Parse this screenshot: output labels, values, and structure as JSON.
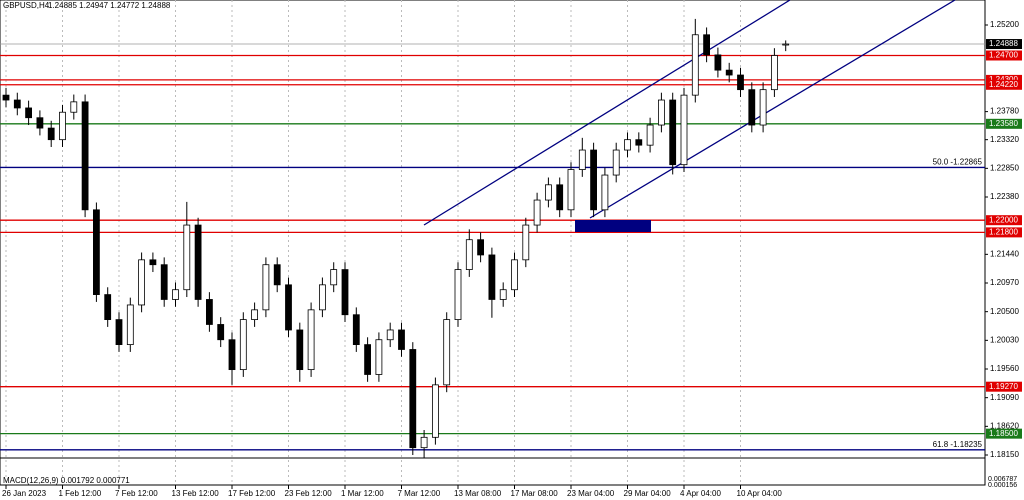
{
  "chart_data": {
    "type": "candlestick",
    "title": "GBPUSD,H4",
    "subtitle": "1.24885 1.24947 1.24772 1.24888",
    "categories": [
      "26 Jan 2023",
      null,
      null,
      null,
      null,
      "1 Feb 12:00",
      null,
      null,
      null,
      null,
      "7 Feb 12:00",
      null,
      null,
      null,
      null,
      "13 Feb 12:00",
      null,
      null,
      null,
      null,
      "17 Feb 12:00",
      null,
      null,
      null,
      null,
      "23 Feb 12:00",
      null,
      null,
      null,
      null,
      "1 Mar 12:00",
      null,
      null,
      null,
      null,
      "7 Mar 12:00",
      null,
      null,
      null,
      null,
      "13 Mar 08:00",
      null,
      null,
      null,
      null,
      "17 Mar 08:00",
      null,
      null,
      null,
      null,
      "23 Mar 04:00",
      null,
      null,
      null,
      null,
      "29 Mar 04:00",
      null,
      null,
      null,
      null,
      "4 Apr 04:00",
      null,
      null,
      null,
      null,
      "10 Apr 04:00",
      null,
      null,
      null,
      null
    ],
    "open": [
      1.2405,
      1.2397,
      1.2384,
      1.2368,
      1.2351,
      1.2332,
      1.2377,
      1.2394,
      1.2217,
      1.2078,
      1.2037,
      1.1996,
      1.2061,
      1.2135,
      1.2127,
      1.207,
      1.2086,
      1.2192,
      1.207,
      1.2029,
      1.2004,
      1.1955,
      1.2037,
      1.2053,
      1.2127,
      1.2094,
      1.202,
      1.1955,
      1.2053,
      1.2094,
      1.2119,
      1.2045,
      1.1996,
      1.1947,
      1.2004,
      1.202,
      1.1988,
      1.1827,
      1.1844,
      1.193,
      1.2037,
      1.2119,
      1.2168,
      1.2143,
      1.207,
      1.2086,
      1.2135,
      1.2192,
      1.2233,
      1.2258,
      1.2217,
      1.2283,
      1.2315,
      1.2217,
      1.2274,
      1.2315,
      1.2332,
      1.2323,
      1.2356,
      1.2397,
      1.2291,
      1.2405,
      1.2504,
      1.2471,
      1.2446,
      1.2438,
      1.2414,
      1.2356,
      1.2414,
      1.24885
    ],
    "high": [
      1.2417,
      1.2409,
      1.2396,
      1.238,
      1.2363,
      1.2389,
      1.2406,
      1.2406,
      1.2229,
      1.209,
      1.2049,
      1.2073,
      1.2147,
      1.2147,
      1.2139,
      1.2098,
      1.223,
      1.2204,
      1.2082,
      1.2041,
      1.2016,
      1.2049,
      1.2065,
      1.2139,
      1.2139,
      1.2106,
      1.2032,
      1.2065,
      1.2106,
      1.2131,
      1.2131,
      1.2057,
      1.2008,
      1.2016,
      1.2032,
      1.2032,
      1.2,
      1.1856,
      1.1942,
      1.2049,
      1.2131,
      1.2185,
      1.218,
      1.2155,
      1.2098,
      1.2147,
      1.2204,
      1.2245,
      1.227,
      1.227,
      1.2295,
      1.2335,
      1.2327,
      1.2286,
      1.2327,
      1.2344,
      1.2344,
      1.2368,
      1.2409,
      1.2409,
      1.2417,
      1.253,
      1.2516,
      1.2483,
      1.2458,
      1.245,
      1.2426,
      1.2426,
      1.2482,
      1.24947
    ],
    "low": [
      1.2385,
      1.2372,
      1.2356,
      1.2339,
      1.232,
      1.232,
      1.2365,
      1.2205,
      1.2066,
      1.2025,
      1.1984,
      1.1984,
      1.2049,
      1.2115,
      1.2058,
      1.2058,
      1.2074,
      1.2058,
      1.2017,
      1.1992,
      1.193,
      1.1943,
      1.2025,
      1.2041,
      1.2082,
      1.2008,
      1.1935,
      1.1943,
      1.2041,
      1.2082,
      1.2033,
      1.1984,
      1.1935,
      1.1935,
      1.1992,
      1.1976,
      1.1815,
      1.181,
      1.1832,
      1.1918,
      1.2025,
      1.2107,
      1.2131,
      1.204,
      1.2058,
      1.2074,
      1.2123,
      1.218,
      1.2221,
      1.2205,
      1.2205,
      1.2271,
      1.2205,
      1.2205,
      1.2262,
      1.2303,
      1.2311,
      1.2311,
      1.2344,
      1.2275,
      1.2279,
      1.2393,
      1.2459,
      1.2434,
      1.2426,
      1.2402,
      1.2344,
      1.2344,
      1.2402,
      1.24772
    ],
    "close": [
      1.2397,
      1.2384,
      1.2368,
      1.2351,
      1.2332,
      1.2377,
      1.2394,
      1.2217,
      1.2078,
      1.2037,
      1.1996,
      1.2061,
      1.2135,
      1.2127,
      1.207,
      1.2086,
      1.2192,
      1.207,
      1.2029,
      1.2004,
      1.1955,
      1.2037,
      1.2053,
      1.2127,
      1.2094,
      1.202,
      1.1955,
      1.2053,
      1.2094,
      1.2119,
      1.2045,
      1.1996,
      1.1947,
      1.2004,
      1.202,
      1.1988,
      1.1827,
      1.1844,
      1.193,
      1.2037,
      1.2119,
      1.2168,
      1.2143,
      1.207,
      1.2086,
      1.2135,
      1.2192,
      1.2233,
      1.2258,
      1.2217,
      1.2283,
      1.2315,
      1.2217,
      1.2274,
      1.2315,
      1.2332,
      1.2323,
      1.2356,
      1.2397,
      1.2291,
      1.2405,
      1.2504,
      1.2471,
      1.2446,
      1.2438,
      1.2414,
      1.2356,
      1.2414,
      1.247,
      1.24888
    ],
    "ylim": [
      1.1815,
      1.2561
    ],
    "yticks": [
      {
        "value": 1.252,
        "label": "1.25200"
      },
      {
        "value": 1.2378,
        "label": "1.23780"
      },
      {
        "value": 1.2332,
        "label": "1.23320"
      },
      {
        "value": 1.2285,
        "label": "1.22850"
      },
      {
        "value": 1.2238,
        "label": "1.22380"
      },
      {
        "value": 1.2144,
        "label": "1.21440"
      },
      {
        "value": 1.2097,
        "label": "1.20970"
      },
      {
        "value": 1.205,
        "label": "1.20500"
      },
      {
        "value": 1.2003,
        "label": "1.20030"
      },
      {
        "value": 1.1956,
        "label": "1.19560"
      },
      {
        "value": 1.1909,
        "label": "1.19090"
      },
      {
        "value": 1.1862,
        "label": "1.18620"
      },
      {
        "value": 1.1815,
        "label": "1.18150"
      }
    ],
    "levels": [
      {
        "value": 1.24888,
        "label": "1.24888",
        "color": "#000000"
      },
      {
        "value": 1.247,
        "label": "1.24700",
        "color": "#e00000"
      },
      {
        "value": 1.243,
        "label": "1.24300",
        "color": "#e00000"
      },
      {
        "value": 1.2422,
        "label": "1.24220",
        "color": "#e00000"
      },
      {
        "value": 1.2358,
        "label": "1.23580",
        "color": "#1a7a1a"
      },
      {
        "value": 1.22865,
        "text": "50.0 -1.22865",
        "color": "#000080"
      },
      {
        "value": 1.22,
        "label": "1.22000",
        "color": "#e00000"
      },
      {
        "value": 1.218,
        "label": "1.21800",
        "color": "#e00000"
      },
      {
        "value": 1.1927,
        "label": "1.19270",
        "color": "#e00000"
      },
      {
        "value": 1.185,
        "label": "1.18500",
        "color": "#1a7a1a"
      },
      {
        "value": 1.18235,
        "text": "61.8 -1.18235",
        "color": "#000080"
      }
    ],
    "macd_label": "MACD(12,26,9) 0.001792 0.000771",
    "macd_scale": [
      "0.006787",
      "0.000156"
    ]
  }
}
